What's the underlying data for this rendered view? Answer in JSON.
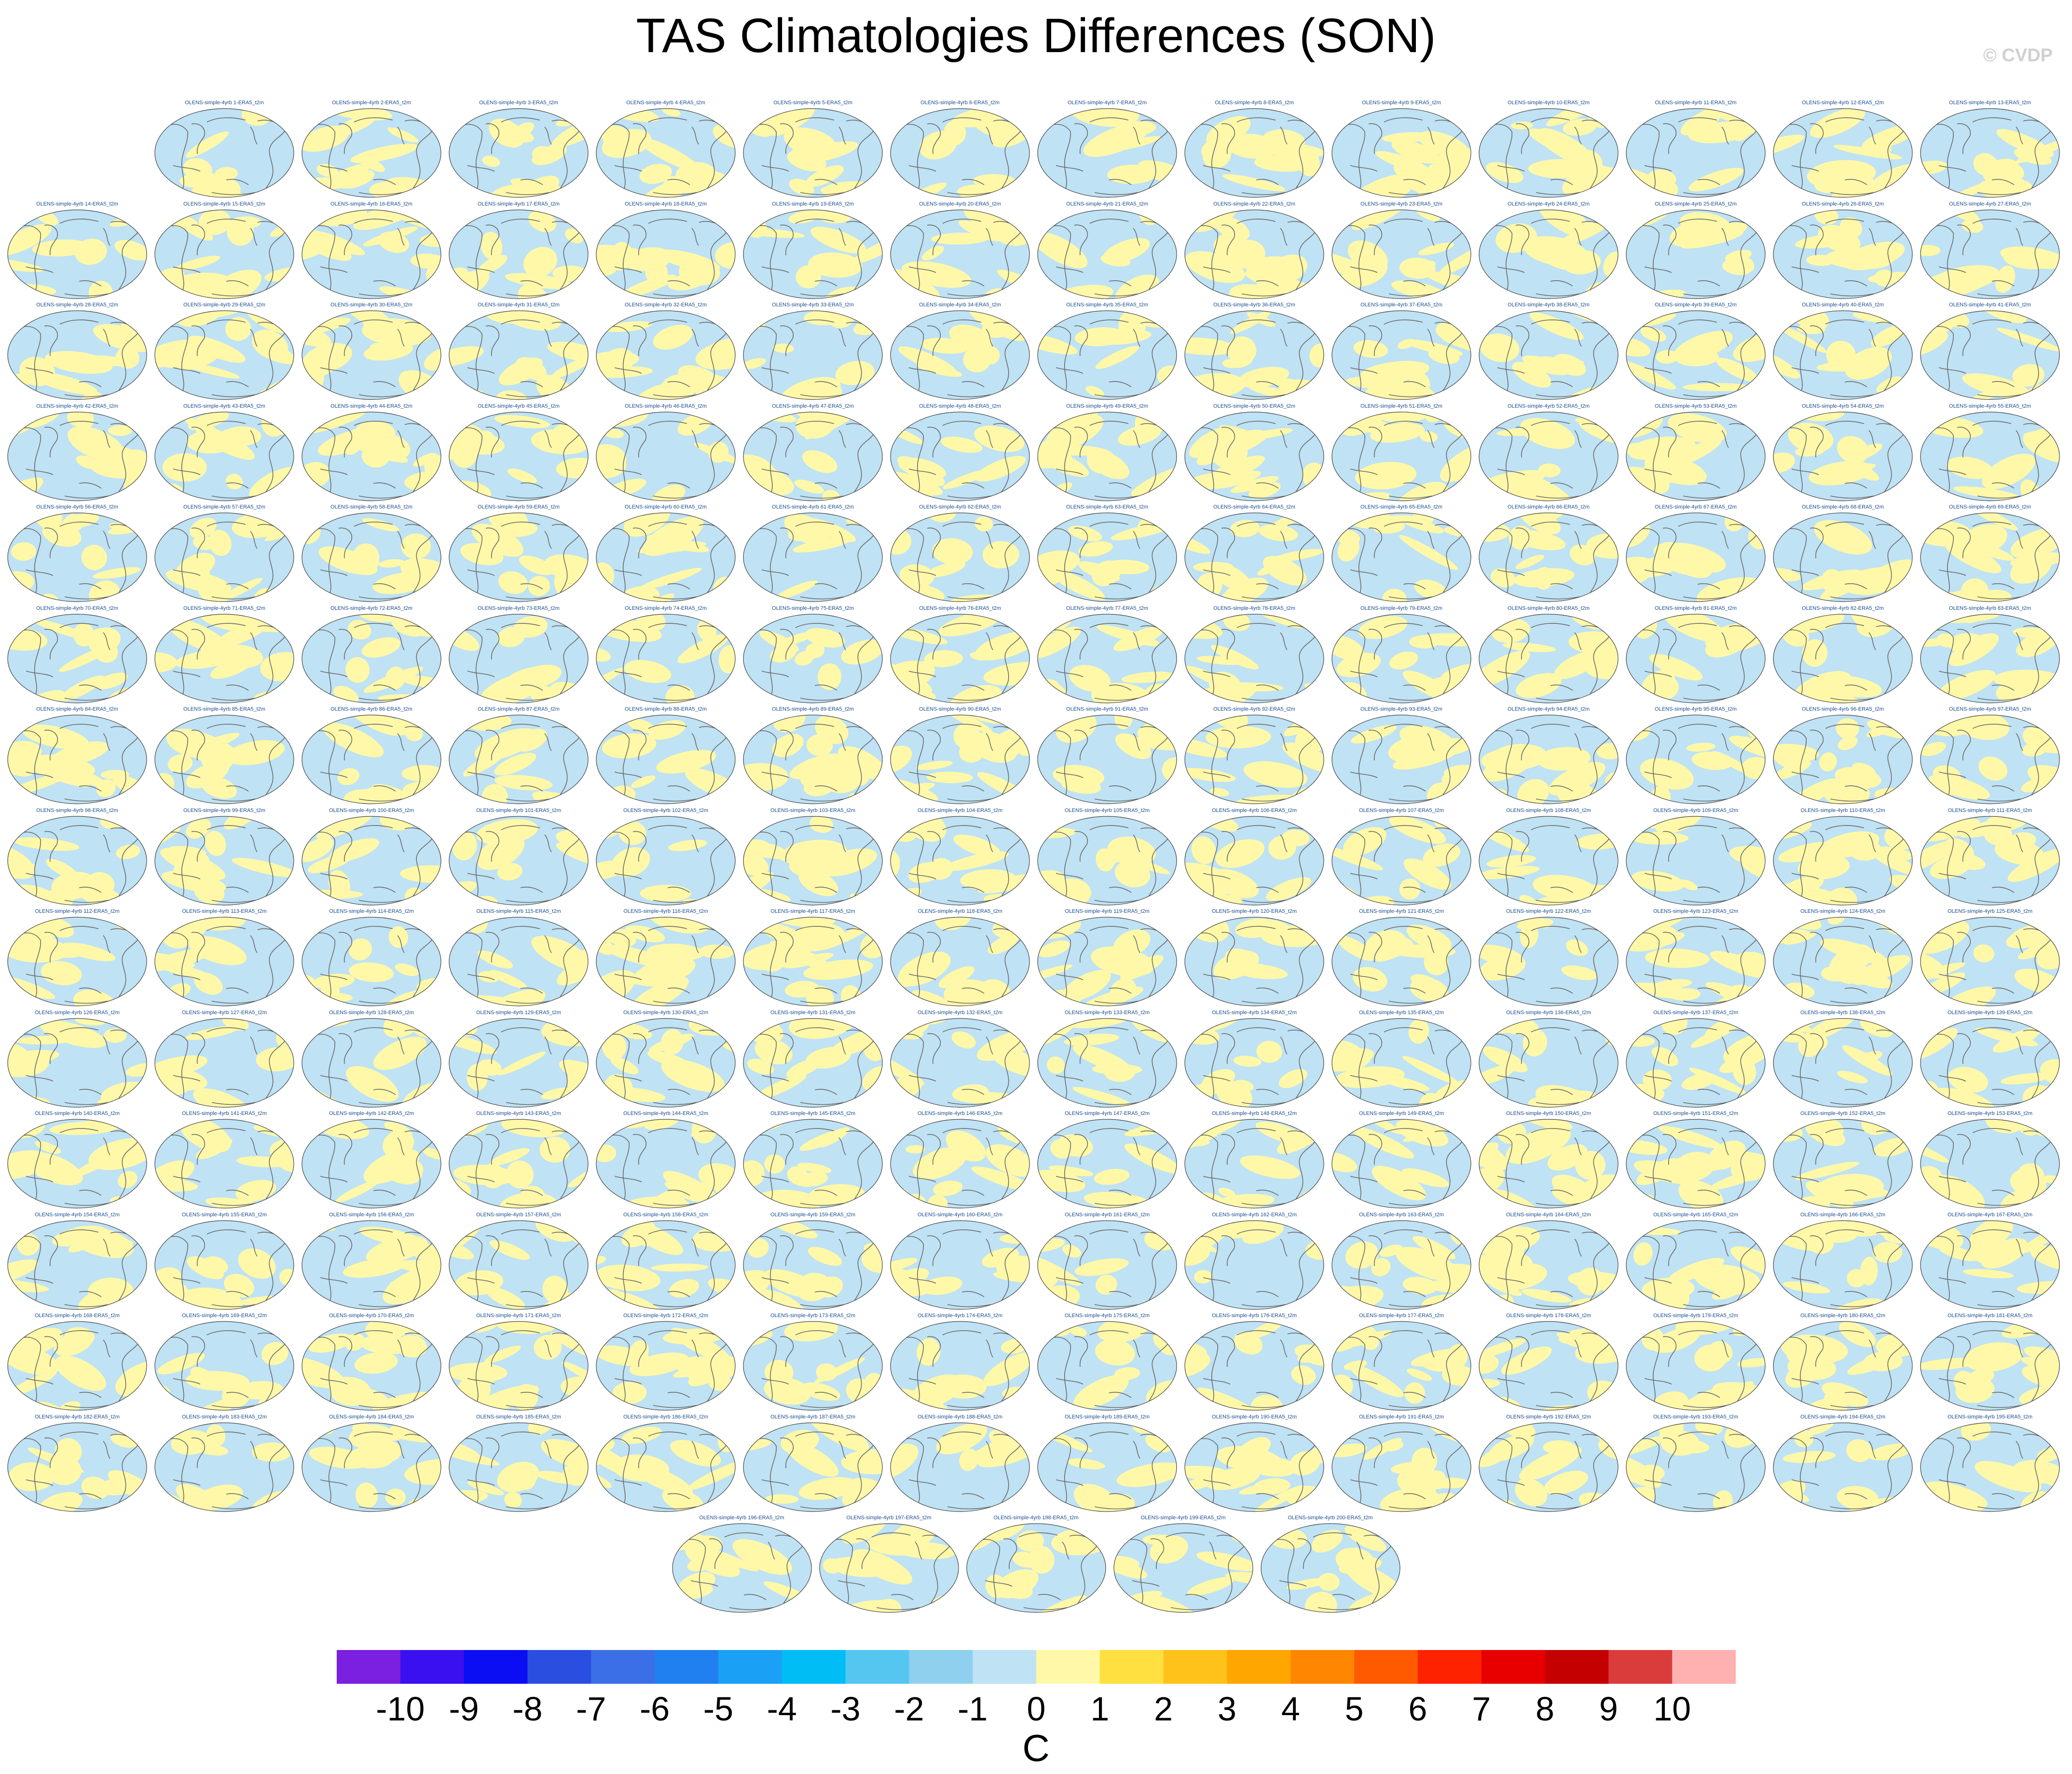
{
  "title": "TAS Climatologies Differences (SON)",
  "copyright": "© CVDP",
  "panel_label_template": "OLENS-simple-4yrb {n}-ERA5_t2m",
  "panel_count": 200,
  "rows": [
    {
      "first": 1,
      "count": 13
    },
    {
      "first": 14,
      "count": 14
    },
    {
      "first": 28,
      "count": 14
    },
    {
      "first": 42,
      "count": 14
    },
    {
      "first": 56,
      "count": 14
    },
    {
      "first": 70,
      "count": 14
    },
    {
      "first": 84,
      "count": 14
    },
    {
      "first": 98,
      "count": 14
    },
    {
      "first": 112,
      "count": 14
    },
    {
      "first": 126,
      "count": 14
    },
    {
      "first": 140,
      "count": 14
    },
    {
      "first": 154,
      "count": 14
    },
    {
      "first": 168,
      "count": 14
    },
    {
      "first": 182,
      "count": 14
    },
    {
      "first": 196,
      "count": 5
    }
  ],
  "map_colors": {
    "ocean_cool": "#bfe2f4",
    "warm": "#fff8a8",
    "coast": "#6b6b6b",
    "outline": "#444444"
  },
  "colorbar": {
    "colors": [
      "#7b1fe0",
      "#3a10f0",
      "#0b0ef2",
      "#2a4fe0",
      "#3a6fe8",
      "#2080f0",
      "#1aa0f5",
      "#00bdf5",
      "#55c6f0",
      "#8fd0ee",
      "#bfe2f4",
      "#fff8a8",
      "#ffe040",
      "#ffc21a",
      "#ffa600",
      "#ff8600",
      "#ff5a00",
      "#ff2200",
      "#e80000",
      "#c40000",
      "#da3c3c",
      "#ffb0b0"
    ],
    "labels": [
      "-10",
      "-9",
      "-8",
      "-7",
      "-6",
      "-5",
      "-4",
      "-3",
      "-2",
      "-1",
      "0",
      "1",
      "2",
      "3",
      "4",
      "5",
      "6",
      "7",
      "8",
      "9",
      "10"
    ],
    "units": "C"
  }
}
